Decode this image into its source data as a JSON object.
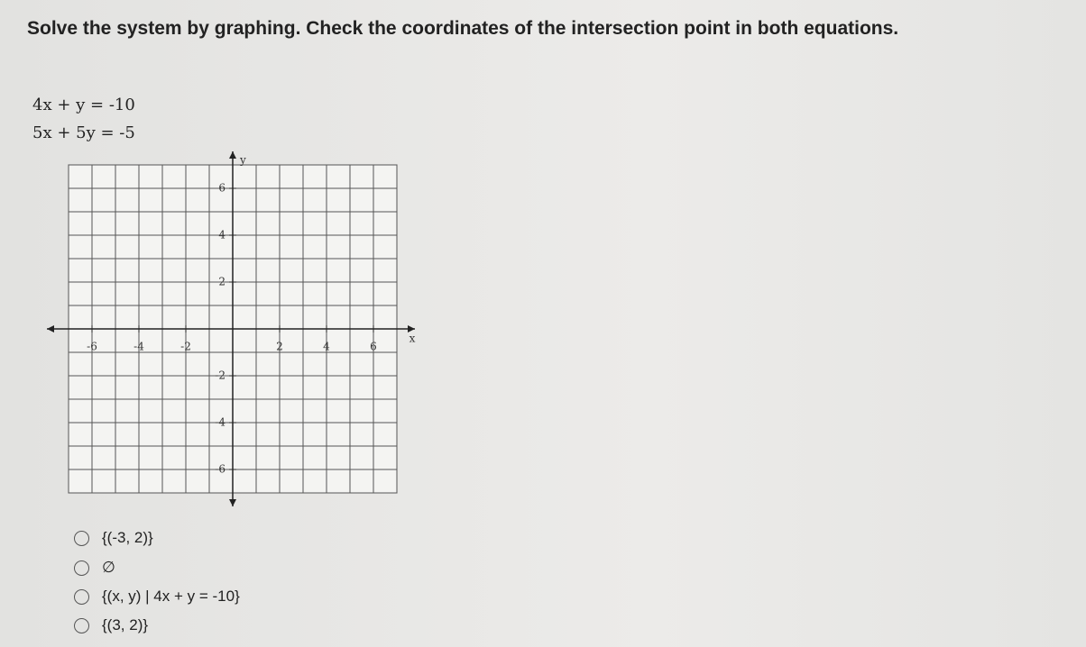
{
  "instruction": "Solve the system by graphing. Check the coordinates of the intersection point in both equations.",
  "equations": [
    "4x +  y = -10",
    "5x + 5y = -5"
  ],
  "graph": {
    "xlabel": "x",
    "ylabel": "y",
    "xticks": [
      -6,
      -4,
      -2,
      2,
      4,
      6
    ],
    "yticks": [
      6,
      4,
      2,
      -2,
      -4,
      -6
    ]
  },
  "options": [
    "{(-3, 2)}",
    "∅",
    "{(x, y) | 4x + y = -10}",
    "{(3, 2)}"
  ]
}
